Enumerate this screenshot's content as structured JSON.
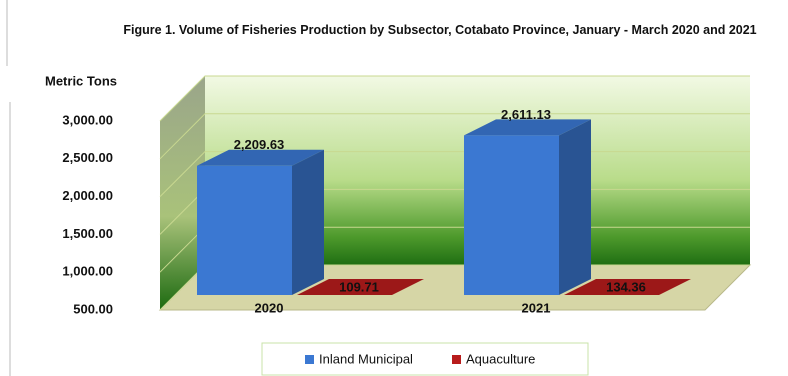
{
  "chart_data": {
    "type": "bar3d",
    "title": "Figure 1. Volume of Fisheries Production by Subsector, Cotabato Province, January - March 2020 and 2021",
    "y_label": "Metric Tons",
    "categories": [
      "2020",
      "2021"
    ],
    "series": [
      {
        "name": "Inland Municipal",
        "color": "#3b78d2",
        "values": [
          2209.63,
          2611.13
        ],
        "value_labels": [
          "2,209.63",
          "2,611.13"
        ]
      },
      {
        "name": "Aquaculture",
        "color": "#b81c1c",
        "values": [
          109.71,
          134.36
        ],
        "value_labels": [
          "109.71",
          "134.36"
        ]
      }
    ],
    "ylim": [
      500,
      3000
    ],
    "yticks": [
      {
        "value": 500,
        "label": "500.00"
      },
      {
        "value": 1000,
        "label": "1,000.00"
      },
      {
        "value": 1500,
        "label": "1,500.00"
      },
      {
        "value": 2000,
        "label": "2,000.00"
      },
      {
        "value": 2500,
        "label": "2,500.00"
      },
      {
        "value": 3000,
        "label": "3,000.00"
      }
    ],
    "grid": true
  }
}
